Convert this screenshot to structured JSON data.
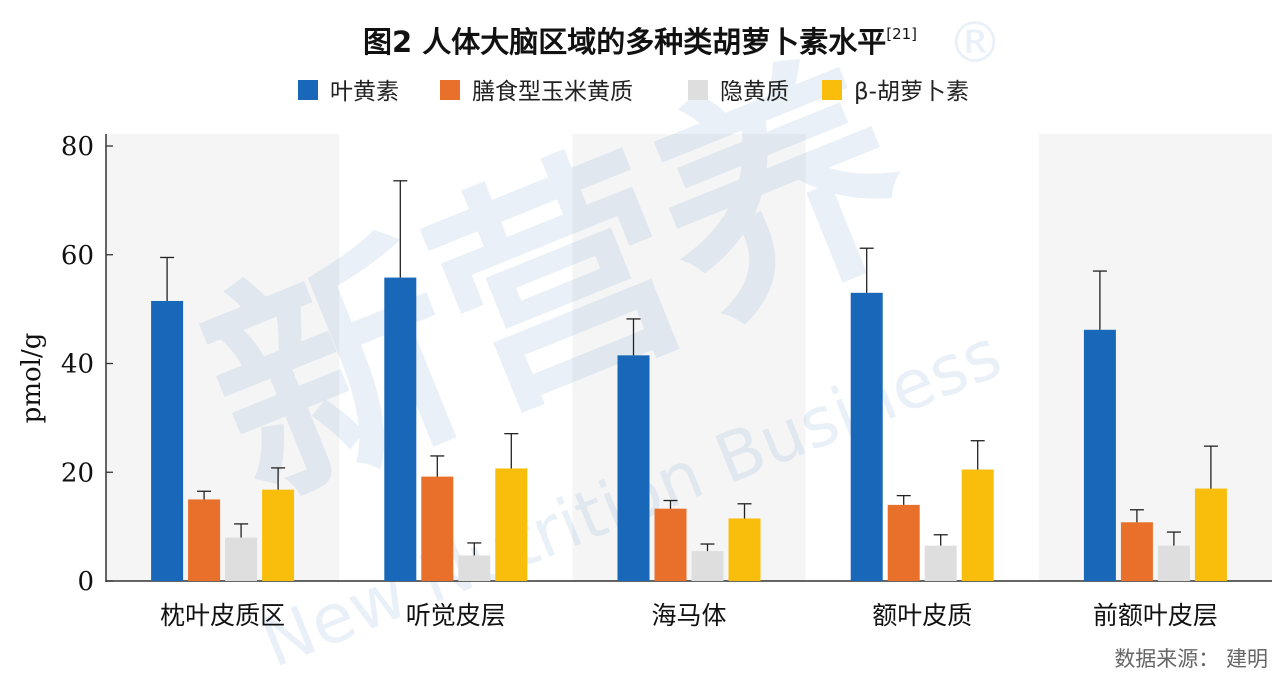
{
  "chart_data": {
    "type": "bar",
    "title": "图2 人体大脑区域的多种类胡萝卜素水平",
    "title_ref": "[21]",
    "ylabel": "pmol/g",
    "xlabel": "",
    "ylim": [
      0,
      80
    ],
    "yticks": [
      0,
      20,
      40,
      60,
      80
    ],
    "categories": [
      "枕叶皮质区",
      "听觉皮层",
      "海马体",
      "额叶皮质",
      "前额叶皮层"
    ],
    "series": [
      {
        "name": "叶黄素",
        "color": "#1967B8",
        "values": [
          51.5,
          55.8,
          41.5,
          53.0,
          46.2
        ],
        "errors": [
          8.0,
          17.8,
          6.7,
          8.2,
          10.8
        ]
      },
      {
        "name": "膳食型玉米黄质",
        "color": "#E9702A",
        "values": [
          15.0,
          19.2,
          13.3,
          14.0,
          10.8
        ],
        "errors": [
          1.5,
          3.8,
          1.5,
          1.7,
          2.3
        ]
      },
      {
        "name": "隐黄质",
        "color": "#DEDEDE",
        "values": [
          8.0,
          4.7,
          5.5,
          6.5,
          6.5
        ],
        "errors": [
          2.5,
          2.3,
          1.3,
          2.0,
          2.5
        ]
      },
      {
        "name": "β-胡萝卜素",
        "color": "#F9BD0C",
        "values": [
          16.8,
          20.7,
          11.5,
          20.5,
          17.0
        ],
        "errors": [
          4.0,
          6.4,
          2.7,
          5.3,
          7.8
        ]
      }
    ],
    "background_bands": true,
    "grid": false,
    "legend": "top-center",
    "source": "数据来源：  建明",
    "watermark": {
      "main": "新营养",
      "sub": "New Nutrition Business",
      "mark": "®"
    }
  }
}
